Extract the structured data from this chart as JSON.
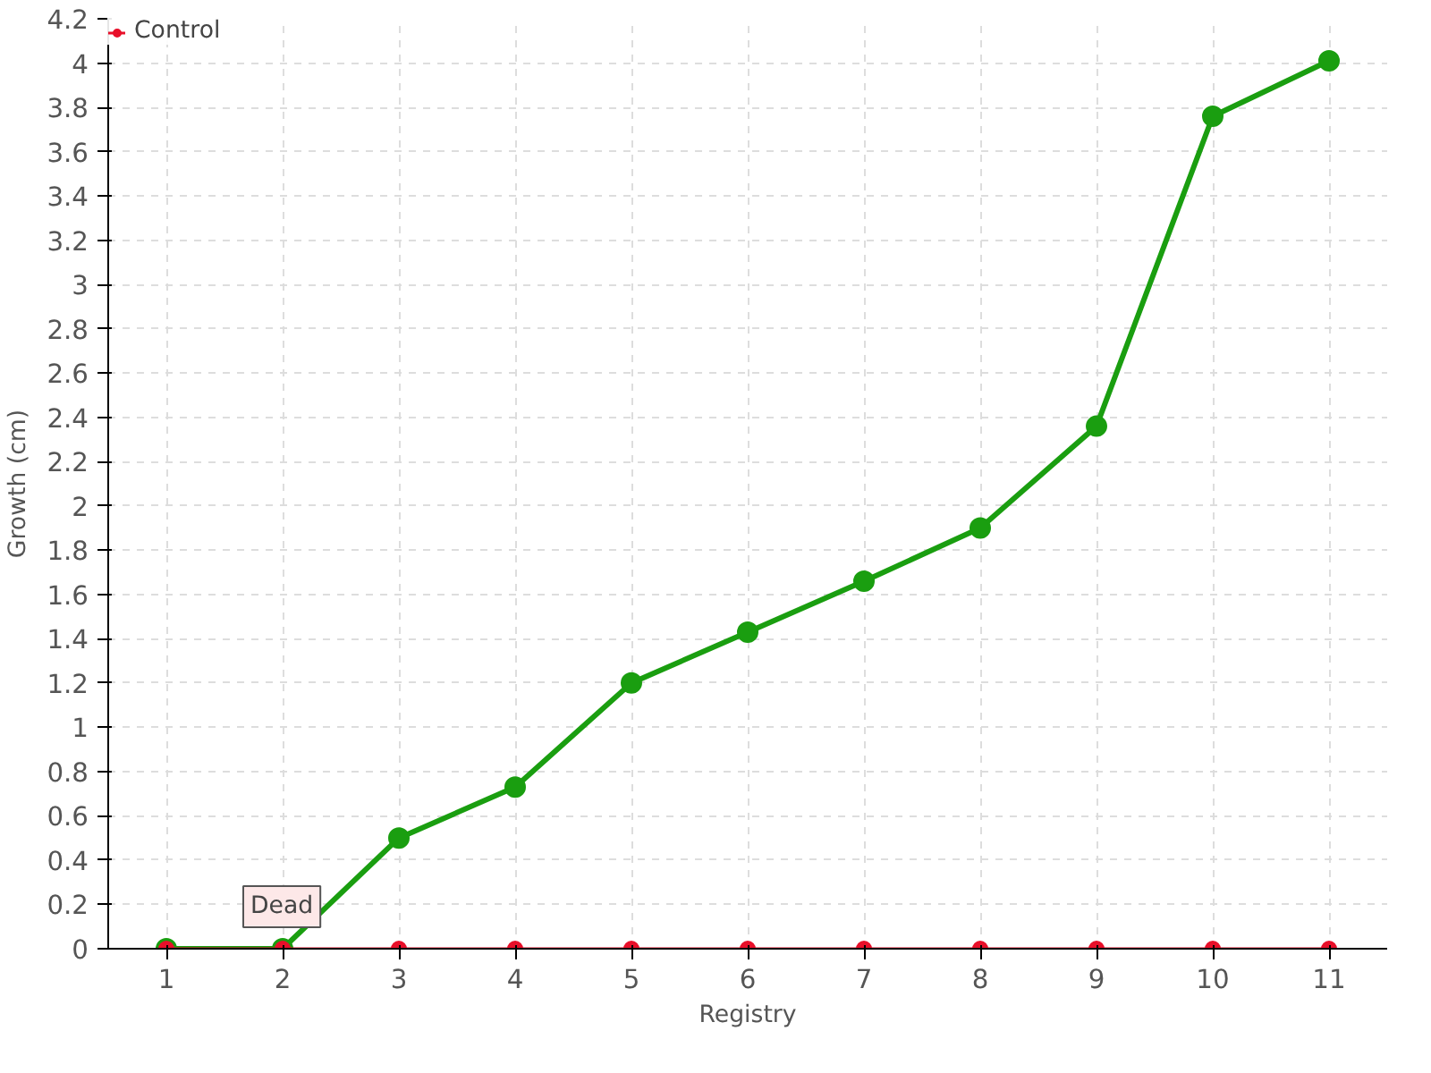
{
  "chart_data": {
    "type": "line",
    "xlabel": "Registry",
    "ylabel": "Growth (cm)",
    "x": [
      1,
      2,
      3,
      4,
      5,
      6,
      7,
      8,
      9,
      10,
      11
    ],
    "series": [
      {
        "color": "#1a9e10",
        "values": [
          0,
          0,
          0.5,
          0.73,
          1.2,
          1.43,
          1.66,
          1.9,
          2.36,
          3.76,
          4.01
        ]
      },
      {
        "name": "Control",
        "color": "#e8102a",
        "values": [
          0,
          0,
          0,
          0,
          0,
          0,
          0,
          0,
          0,
          0,
          0
        ]
      }
    ],
    "xlim": [
      0.5,
      11.5
    ],
    "xticks": [
      1,
      2,
      3,
      4,
      5,
      6,
      7,
      8,
      9,
      10,
      11
    ],
    "ylim": [
      0,
      4.2
    ],
    "yticks": [
      0,
      0.2,
      0.4,
      0.6,
      0.8,
      1,
      1.2,
      1.4,
      1.6,
      1.8,
      2,
      2.2,
      2.4,
      2.6,
      2.8,
      3,
      3.2,
      3.4,
      3.6,
      3.8,
      4,
      4.2
    ],
    "annotations": [
      {
        "text": "Dead",
        "x": 2,
        "y": 0
      }
    ],
    "grid": true,
    "legend": "top left",
    "marker": "circle",
    "line_style": "solid"
  }
}
